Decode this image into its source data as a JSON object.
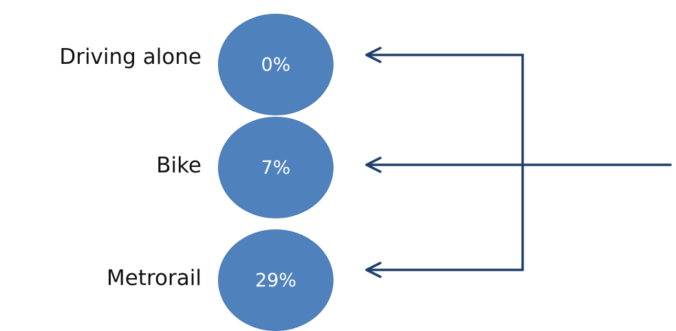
{
  "modes": [
    {
      "label": "Driving alone",
      "percent": "0%"
    },
    {
      "label": "Bike",
      "percent": "7%"
    },
    {
      "label": "Metrorail",
      "percent": "29%"
    }
  ],
  "colors": {
    "bubble": "#4f81bd",
    "arrow": "#1f3f6b"
  }
}
